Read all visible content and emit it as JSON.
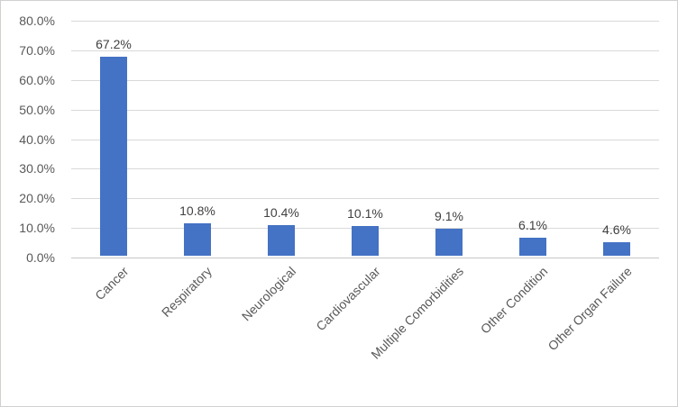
{
  "chart_data": {
    "type": "bar",
    "title": "",
    "xlabel": "",
    "ylabel": "",
    "categories": [
      "Cancer",
      "Respiratory",
      "Neurological",
      "Cardiovascular",
      "Multiple Comorbidities",
      "Other Condition",
      "Other Organ Failure"
    ],
    "values": [
      67.2,
      10.8,
      10.4,
      10.1,
      9.1,
      6.1,
      4.6
    ],
    "data_labels": [
      "67.2%",
      "10.8%",
      "10.4%",
      "10.1%",
      "9.1%",
      "6.1%",
      "4.6%"
    ],
    "ylim": [
      0,
      80
    ],
    "ytick_step": 10,
    "ytick_labels": [
      "0.0%",
      "10.0%",
      "20.0%",
      "30.0%",
      "40.0%",
      "50.0%",
      "60.0%",
      "70.0%",
      "80.0%"
    ],
    "grid": true,
    "legend": "none",
    "colors": {
      "bar_fill": "#4472C4",
      "gridline": "#D9D9D9",
      "axis_line": "#C6C6C6",
      "axis_text": "#595959",
      "data_label_text": "#404040",
      "frame_border": "#D2D0CE",
      "background": "#FFFFFF"
    }
  }
}
